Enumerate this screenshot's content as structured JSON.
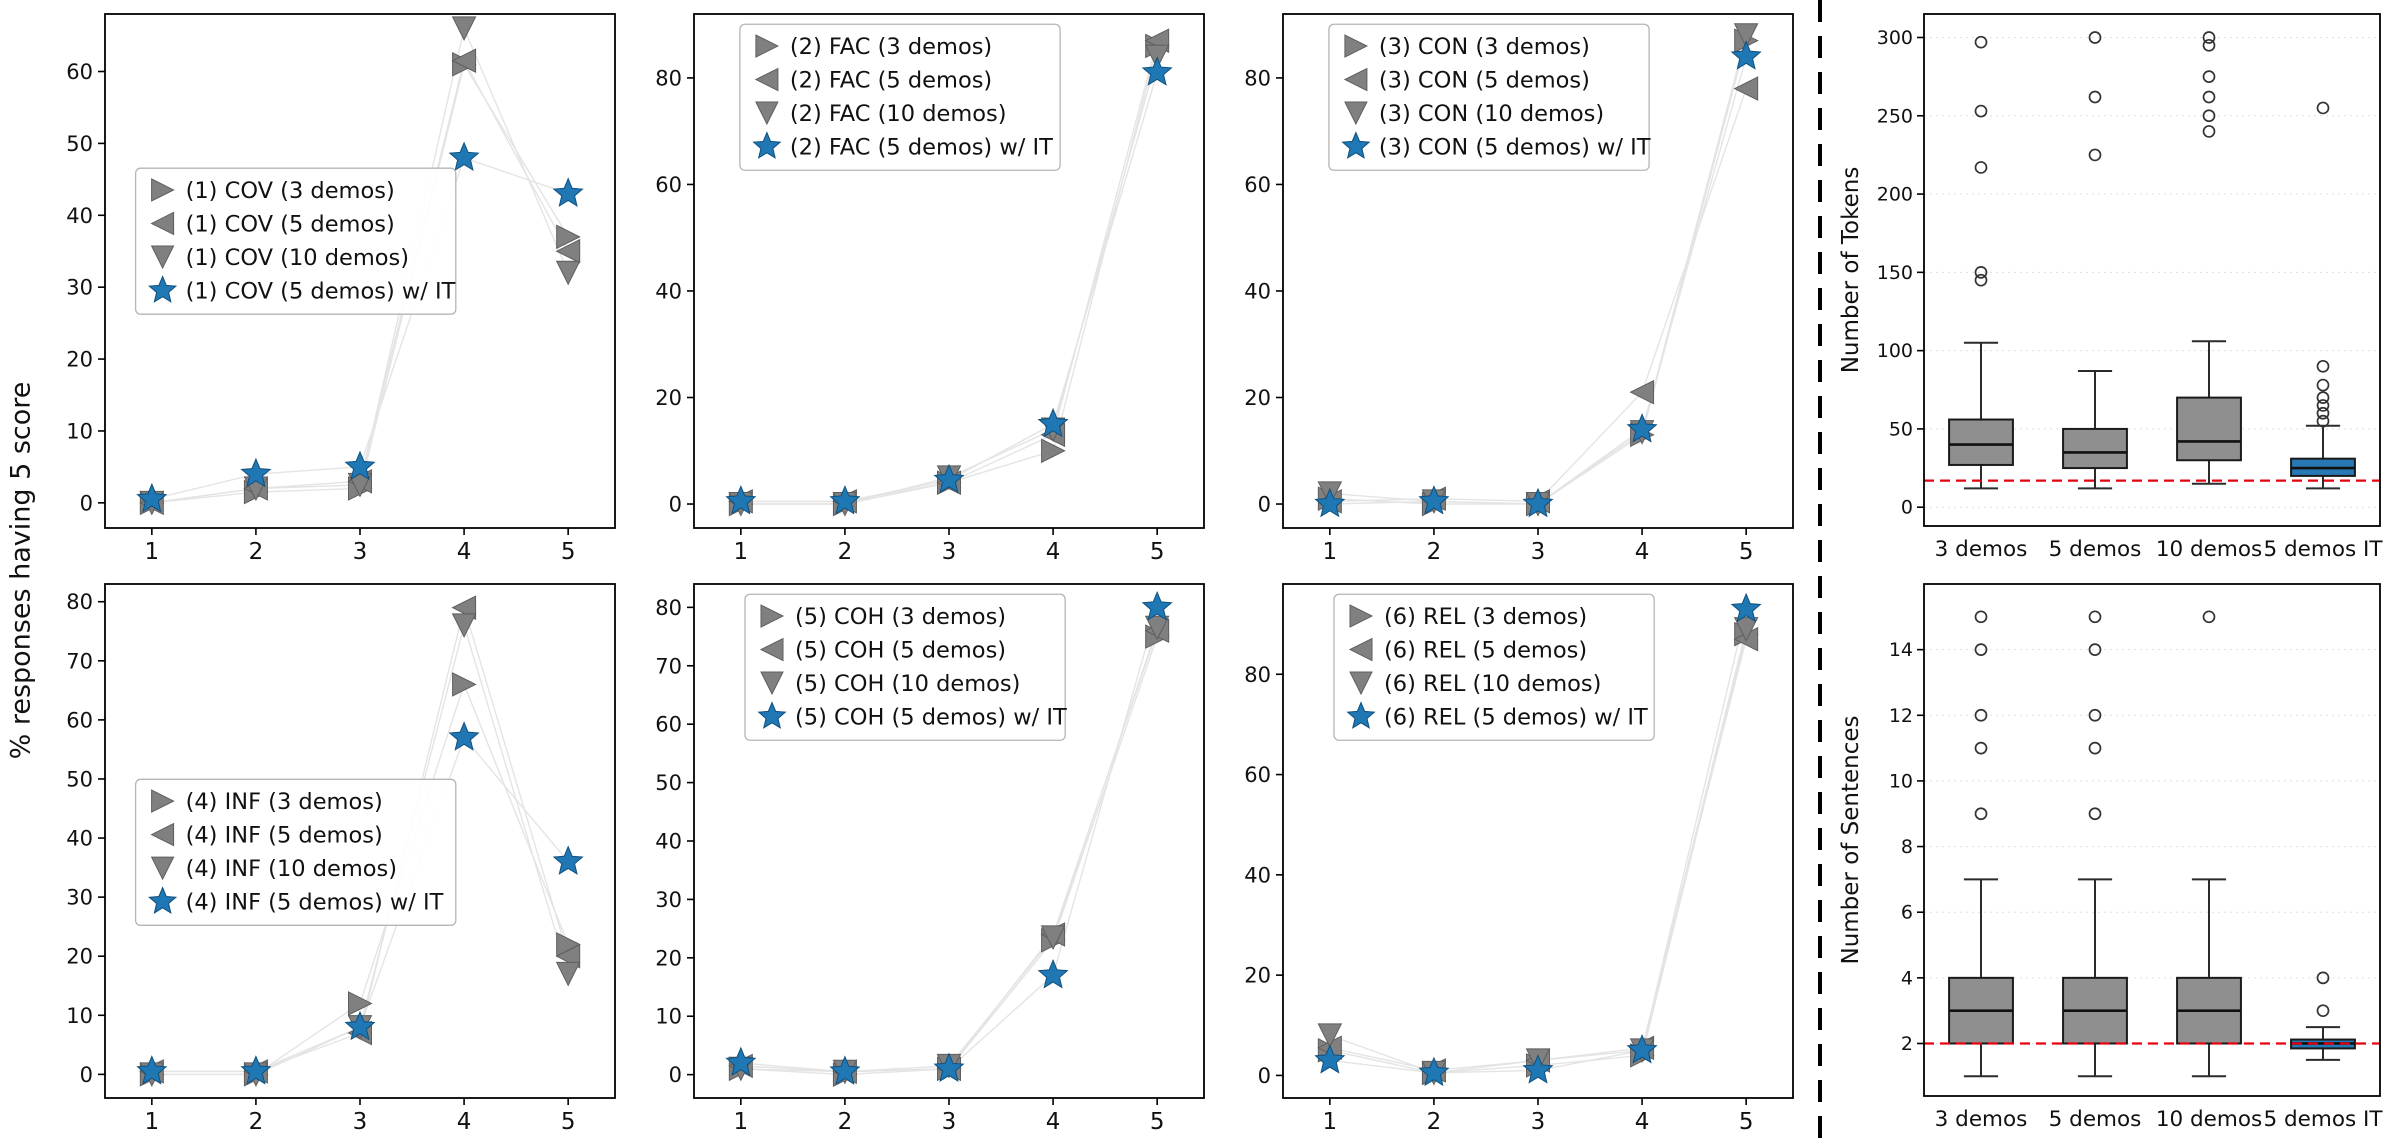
{
  "figure": {
    "ylabel_left": "% responses having 5 score",
    "colors": {
      "gray_marker": "#808080",
      "gray_edge": "#5e5e5e",
      "blue_marker": "#1f77b4",
      "blue_edge": "#10507e",
      "gray_box": "#8f8f8f",
      "blue_box": "#2878b5",
      "red_line": "#e60012",
      "faint_line": "#e4e4e4"
    }
  },
  "chart_data": [
    {
      "type": "scatter",
      "id": "cov",
      "x": [
        1,
        2,
        3,
        4,
        5
      ],
      "xticks": [
        "1",
        "2",
        "3",
        "4",
        "5"
      ],
      "yticks": [
        0,
        10,
        20,
        30,
        40,
        50,
        60
      ],
      "ylim": [
        -3.5,
        68
      ],
      "legend_pos": [
        0.06,
        0.3
      ],
      "series": [
        {
          "name": "(1) COV (3 demos)",
          "marker": "right",
          "color": "gray",
          "values": [
            0,
            1.5,
            2,
            61,
            37
          ]
        },
        {
          "name": "(1) COV (5 demos)",
          "marker": "left",
          "color": "gray",
          "values": [
            0,
            2,
            3,
            61.5,
            35
          ]
        },
        {
          "name": "(1) COV (10 demos)",
          "marker": "down",
          "color": "gray",
          "values": [
            0,
            2,
            2.5,
            66,
            32
          ]
        },
        {
          "name": "(1) COV (5 demos) w/ IT",
          "marker": "star",
          "color": "blue",
          "values": [
            0.5,
            4,
            5,
            48,
            43
          ]
        }
      ]
    },
    {
      "type": "scatter",
      "id": "fac",
      "x": [
        1,
        2,
        3,
        4,
        5
      ],
      "xticks": [
        "1",
        "2",
        "3",
        "4",
        "5"
      ],
      "yticks": [
        0,
        20,
        40,
        60,
        80
      ],
      "ylim": [
        -4.5,
        92
      ],
      "legend_pos": [
        0.09,
        0.02
      ],
      "series": [
        {
          "name": "(2) FAC (3 demos)",
          "marker": "right",
          "color": "gray",
          "values": [
            0,
            0,
            4,
            10,
            86
          ]
        },
        {
          "name": "(2) FAC (5 demos)",
          "marker": "left",
          "color": "gray",
          "values": [
            0.5,
            0.5,
            4,
            13,
            87
          ]
        },
        {
          "name": "(2) FAC (10 demos)",
          "marker": "down",
          "color": "gray",
          "values": [
            0,
            0,
            5,
            14,
            84
          ]
        },
        {
          "name": "(2) FAC (5 demos) w/ IT",
          "marker": "star",
          "color": "blue",
          "values": [
            0.5,
            0.5,
            4.5,
            15,
            81
          ]
        }
      ]
    },
    {
      "type": "scatter",
      "id": "con",
      "x": [
        1,
        2,
        3,
        4,
        5
      ],
      "xticks": [
        "1",
        "2",
        "3",
        "4",
        "5"
      ],
      "yticks": [
        0,
        20,
        40,
        60,
        80
      ],
      "ylim": [
        -4.5,
        92
      ],
      "legend_pos": [
        0.09,
        0.02
      ],
      "series": [
        {
          "name": "(3) CON (3 demos)",
          "marker": "right",
          "color": "gray",
          "values": [
            1,
            0,
            0,
            13,
            87
          ]
        },
        {
          "name": "(3) CON (5 demos)",
          "marker": "left",
          "color": "gray",
          "values": [
            0.5,
            1,
            0.5,
            21,
            78
          ]
        },
        {
          "name": "(3) CON (10 demos)",
          "marker": "down",
          "color": "gray",
          "values": [
            2,
            0.5,
            0,
            13.5,
            88
          ]
        },
        {
          "name": "(3) CON (5 demos) w/ IT",
          "marker": "star",
          "color": "blue",
          "values": [
            0,
            0.5,
            0,
            14,
            84
          ]
        }
      ]
    },
    {
      "type": "scatter",
      "id": "inf",
      "x": [
        1,
        2,
        3,
        4,
        5
      ],
      "xticks": [
        "1",
        "2",
        "3",
        "4",
        "5"
      ],
      "yticks": [
        0,
        10,
        20,
        30,
        40,
        50,
        60,
        70,
        80
      ],
      "ylim": [
        -4,
        83
      ],
      "legend_pos": [
        0.06,
        0.38
      ],
      "series": [
        {
          "name": "(4) INF (3 demos)",
          "marker": "right",
          "color": "gray",
          "values": [
            0,
            0,
            12,
            66,
            22
          ]
        },
        {
          "name": "(4) INF (5 demos)",
          "marker": "left",
          "color": "gray",
          "values": [
            0.5,
            0.5,
            7,
            79,
            20
          ]
        },
        {
          "name": "(4) INF (10 demos)",
          "marker": "down",
          "color": "gray",
          "values": [
            0,
            0,
            8,
            76,
            17
          ]
        },
        {
          "name": "(4) INF (5 demos) w/ IT",
          "marker": "star",
          "color": "blue",
          "values": [
            0.5,
            0.5,
            8,
            57,
            36
          ]
        }
      ]
    },
    {
      "type": "scatter",
      "id": "coh",
      "x": [
        1,
        2,
        3,
        4,
        5
      ],
      "xticks": [
        "1",
        "2",
        "3",
        "4",
        "5"
      ],
      "yticks": [
        0,
        10,
        20,
        30,
        40,
        50,
        60,
        70,
        80
      ],
      "ylim": [
        -4,
        84
      ],
      "legend_pos": [
        0.1,
        0.02
      ],
      "series": [
        {
          "name": "(5) COH (3 demos)",
          "marker": "right",
          "color": "gray",
          "values": [
            1,
            0,
            1,
            23,
            75
          ]
        },
        {
          "name": "(5) COH (5 demos)",
          "marker": "left",
          "color": "gray",
          "values": [
            1.5,
            0.5,
            1,
            24,
            76
          ]
        },
        {
          "name": "(5) COH (10 demos)",
          "marker": "down",
          "color": "gray",
          "values": [
            1,
            0.5,
            1.5,
            23.5,
            76.5
          ]
        },
        {
          "name": "(5) COH (5 demos) w/ IT",
          "marker": "star",
          "color": "blue",
          "values": [
            2,
            0.5,
            1,
            17,
            80
          ]
        }
      ]
    },
    {
      "type": "scatter",
      "id": "rel",
      "x": [
        1,
        2,
        3,
        4,
        5
      ],
      "xticks": [
        "1",
        "2",
        "3",
        "4",
        "5"
      ],
      "yticks": [
        0,
        20,
        40,
        60,
        80
      ],
      "ylim": [
        -4.5,
        98
      ],
      "legend_pos": [
        0.1,
        0.02
      ],
      "series": [
        {
          "name": "(6) REL (3 demos)",
          "marker": "right",
          "color": "gray",
          "values": [
            5,
            0.5,
            2,
            4,
            88
          ]
        },
        {
          "name": "(6) REL (5 demos)",
          "marker": "left",
          "color": "gray",
          "values": [
            5.5,
            1,
            3,
            5.5,
            87
          ]
        },
        {
          "name": "(6) REL (10 demos)",
          "marker": "down",
          "color": "gray",
          "values": [
            8,
            0.5,
            3,
            5,
            89
          ]
        },
        {
          "name": "(6) REL (5 demos) w/ IT",
          "marker": "star",
          "color": "blue",
          "values": [
            3,
            0.5,
            1,
            5,
            93
          ]
        }
      ]
    },
    {
      "type": "box",
      "id": "tokens",
      "ylabel": "Number of Tokens",
      "ylim": [
        -12,
        315
      ],
      "yticks": [
        0,
        50,
        100,
        150,
        200,
        250,
        300
      ],
      "refline": 17,
      "categories": [
        "3 demos",
        "5 demos",
        "10 demos",
        "5 demos IT"
      ],
      "boxes": [
        {
          "whislo": 12,
          "q1": 27,
          "med": 40,
          "q3": 56,
          "whishi": 105,
          "outliers": [
            145,
            150,
            217,
            253,
            297
          ],
          "fill": "gray"
        },
        {
          "whislo": 12,
          "q1": 25,
          "med": 35,
          "q3": 50,
          "whishi": 87,
          "outliers": [
            225,
            262,
            300
          ],
          "fill": "gray"
        },
        {
          "whislo": 15,
          "q1": 30,
          "med": 42,
          "q3": 70,
          "whishi": 106,
          "outliers": [
            240,
            250,
            262,
            275,
            295,
            300
          ],
          "fill": "gray"
        },
        {
          "whislo": 12,
          "q1": 20,
          "med": 25,
          "q3": 31,
          "whishi": 52,
          "outliers": [
            55,
            60,
            65,
            70,
            78,
            90,
            255
          ],
          "fill": "blue"
        }
      ]
    },
    {
      "type": "box",
      "id": "sentences",
      "ylabel": "Number of Sentences",
      "ylim": [
        0.4,
        16
      ],
      "yticks": [
        2,
        4,
        6,
        8,
        10,
        12,
        14
      ],
      "refline": 2,
      "categories": [
        "3 demos",
        "5 demos",
        "10 demos",
        "5 demos IT"
      ],
      "boxes": [
        {
          "whislo": 1,
          "q1": 2,
          "med": 3,
          "q3": 4,
          "whishi": 7,
          "outliers": [
            9,
            11,
            12,
            14,
            15
          ],
          "fill": "gray"
        },
        {
          "whislo": 1,
          "q1": 2,
          "med": 3,
          "q3": 4,
          "whishi": 7,
          "outliers": [
            9,
            11,
            12,
            14,
            15
          ],
          "fill": "gray"
        },
        {
          "whislo": 1,
          "q1": 2,
          "med": 3,
          "q3": 4,
          "whishi": 7,
          "outliers": [
            15
          ],
          "fill": "gray"
        },
        {
          "whislo": 1.5,
          "q1": 1.85,
          "med": 2,
          "q3": 2.12,
          "whishi": 2.5,
          "outliers": [
            3,
            4
          ],
          "fill": "blue"
        }
      ]
    }
  ]
}
